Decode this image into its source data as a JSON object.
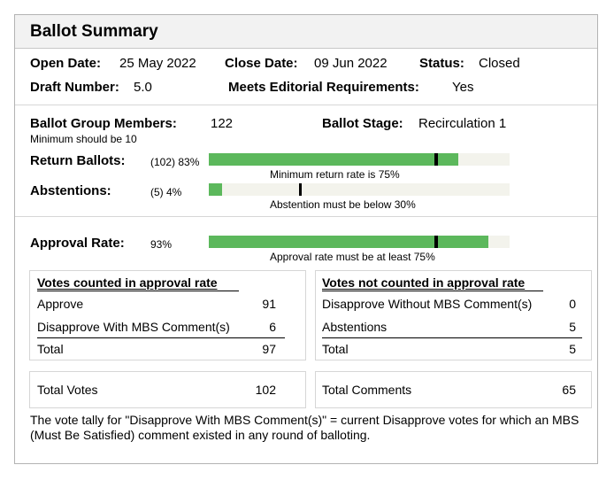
{
  "title": "Ballot Summary",
  "info": {
    "open_date_label": "Open Date:",
    "open_date": "25 May 2022",
    "close_date_label": "Close Date:",
    "close_date": "09 Jun 2022",
    "status_label": "Status:",
    "status": "Closed",
    "draft_number_label": "Draft Number:",
    "draft_number": "5.0",
    "editorial_label": "Meets Editorial Requirements:",
    "editorial": "Yes"
  },
  "ballot": {
    "members_label": "Ballot Group Members:",
    "members": "122",
    "members_note": "Minimum should be 10",
    "stage_label": "Ballot Stage:",
    "stage": "Recirculation 1",
    "return_label": "Return Ballots:",
    "return_value": "(102) 83%",
    "return_fill": 0.83,
    "return_threshold": 0.75,
    "return_note": "Minimum return rate is 75%",
    "abst_label": "Abstentions:",
    "abst_value": "(5) 4%",
    "abst_fill": 0.04,
    "abst_threshold": 0.3,
    "abst_note": "Abstention must be below 30%"
  },
  "approval": {
    "label": "Approval Rate:",
    "value": "93%",
    "fill": 0.93,
    "threshold": 0.75,
    "note": "Approval rate must be at least 75%"
  },
  "counted": {
    "header": "Votes counted in approval rate",
    "rows": [
      {
        "label": "Approve",
        "value": "91"
      },
      {
        "label": "Disapprove With MBS Comment(s)",
        "value": "6"
      }
    ],
    "total_label": "Total",
    "total_value": "97"
  },
  "not_counted": {
    "header": "Votes not counted in approval rate",
    "rows": [
      {
        "label": "Disapprove Without MBS Comment(s)",
        "value": "0"
      },
      {
        "label": "Abstentions",
        "value": "5"
      }
    ],
    "total_label": "Total",
    "total_value": "5"
  },
  "totals": {
    "votes_label": "Total Votes",
    "votes": "102",
    "comments_label": "Total Comments",
    "comments": "65"
  },
  "footnote": "The vote tally for \"Disapprove With MBS Comment(s)\" = current Disapprove votes for which an MBS (Must Be Satisfied) comment existed in any round of balloting.",
  "colors": {
    "bar": "#5cb85c",
    "track": "#f3f3ec",
    "marker": "#000000"
  }
}
